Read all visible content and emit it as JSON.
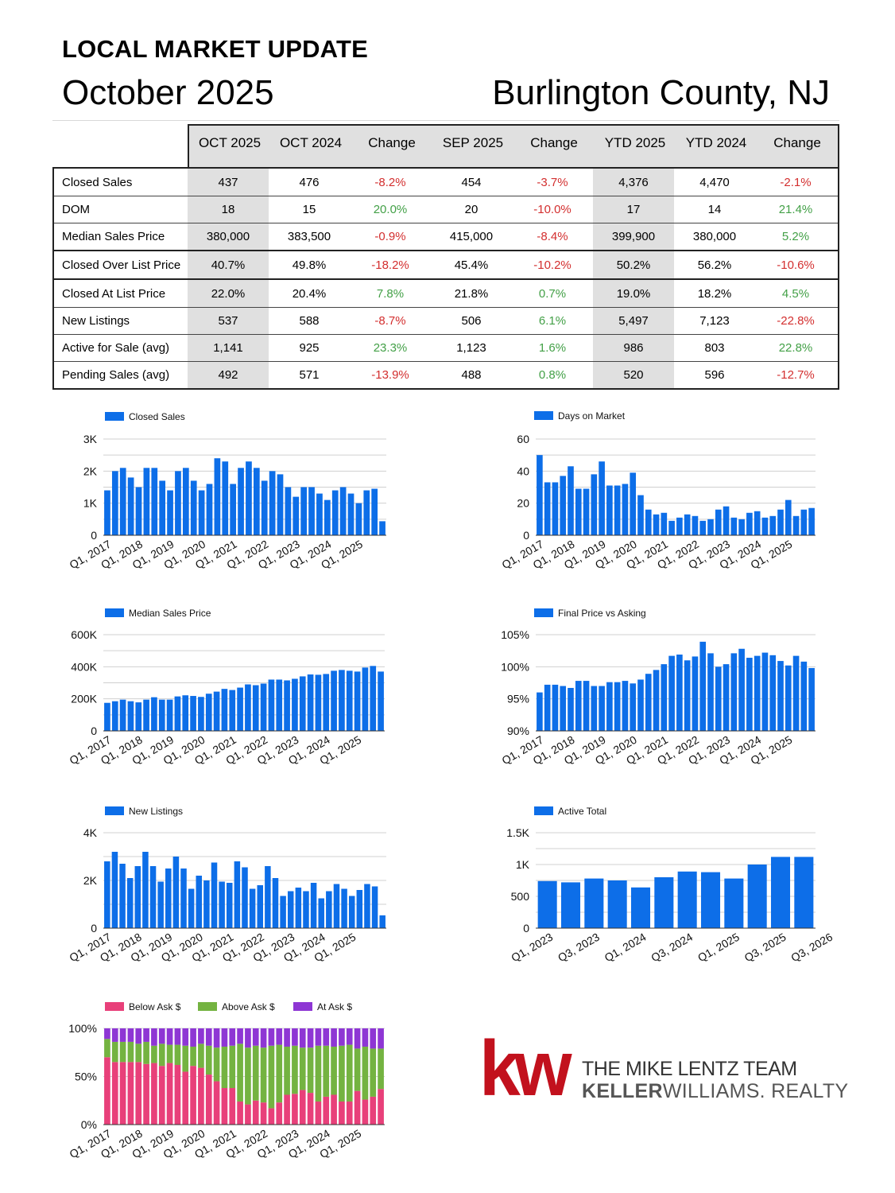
{
  "header": {
    "label": "LOCAL MARKET UPDATE",
    "date": "October 2025",
    "location": "Burlington County, NJ"
  },
  "table": {
    "columns": [
      "OCT 2025",
      "OCT 2024",
      "Change",
      "SEP 2025",
      "Change",
      "YTD 2025",
      "YTD 2024",
      "Change"
    ],
    "rows": [
      {
        "label": "Closed Sales",
        "values": [
          "437",
          "476",
          "-8.2%",
          "454",
          "-3.7%",
          "4,376",
          "4,470",
          "-2.1%"
        ]
      },
      {
        "label": "DOM",
        "values": [
          "18",
          "15",
          "20.0%",
          "20",
          "-10.0%",
          "17",
          "14",
          "21.4%"
        ]
      },
      {
        "label": "Median Sales Price",
        "values": [
          "380,000",
          "383,500",
          "-0.9%",
          "415,000",
          "-8.4%",
          "399,900",
          "380,000",
          "5.2%"
        ]
      },
      {
        "label": "Closed Over List Price",
        "values": [
          "40.7%",
          "49.8%",
          "-18.2%",
          "45.4%",
          "-10.2%",
          "50.2%",
          "56.2%",
          "-10.6%"
        ]
      },
      {
        "label": "Closed At List Price",
        "values": [
          "22.0%",
          "20.4%",
          "7.8%",
          "21.8%",
          "0.7%",
          "19.0%",
          "18.2%",
          "4.5%"
        ]
      },
      {
        "label": "New Listings",
        "values": [
          "537",
          "588",
          "-8.7%",
          "506",
          "6.1%",
          "5,497",
          "7,123",
          "-22.8%"
        ]
      },
      {
        "label": "Active for Sale (avg)",
        "values": [
          "1,141",
          "925",
          "23.3%",
          "1,123",
          "1.6%",
          "986",
          "803",
          "22.8%"
        ]
      },
      {
        "label": "Pending Sales (avg)",
        "values": [
          "492",
          "571",
          "-13.9%",
          "488",
          "0.8%",
          "520",
          "596",
          "-12.7%"
        ]
      }
    ],
    "change_colors": {
      "negative": "#d32f2f",
      "positive": "#43a047"
    }
  },
  "colors": {
    "bar": "#0d6ee8",
    "below": "#e8407a",
    "above": "#74b341",
    "at": "#8e36d4"
  },
  "chart_data": [
    {
      "type": "bar",
      "legend": "Closed Sales",
      "x_ticks": [
        "Q1, 2017",
        "Q1, 2018",
        "Q1, 2019",
        "Q1, 2020",
        "Q1, 2021",
        "Q1, 2022",
        "Q1, 2023",
        "Q1, 2024",
        "Q1, 2025"
      ],
      "y_ticks": [
        "0",
        "1K",
        "2K",
        "3K"
      ],
      "ylim": [
        0,
        3000
      ],
      "values": [
        1400,
        2000,
        2100,
        1800,
        1500,
        2100,
        2100,
        1700,
        1400,
        2000,
        2100,
        1700,
        1400,
        1600,
        2400,
        2300,
        1600,
        2100,
        2300,
        2100,
        1700,
        2000,
        1900,
        1500,
        1200,
        1500,
        1500,
        1300,
        1100,
        1400,
        1500,
        1300,
        1000,
        1400,
        1450,
        437
      ]
    },
    {
      "type": "bar",
      "legend": "Days on Market",
      "x_ticks": [
        "Q1, 2017",
        "Q1, 2018",
        "Q1, 2019",
        "Q1, 2020",
        "Q1, 2021",
        "Q1, 2022",
        "Q1, 2023",
        "Q1, 2024",
        "Q1, 2025"
      ],
      "y_ticks": [
        "0",
        "20",
        "40",
        "60"
      ],
      "ylim": [
        0,
        60
      ],
      "values": [
        50,
        33,
        33,
        37,
        43,
        29,
        29,
        38,
        46,
        31,
        31,
        32,
        39,
        25,
        16,
        13,
        14,
        9,
        11,
        13,
        12,
        9,
        10,
        16,
        18,
        11,
        10,
        14,
        15,
        11,
        12,
        16,
        22,
        12,
        16,
        17
      ]
    },
    {
      "type": "bar",
      "legend": "Median Sales Price",
      "x_ticks": [
        "Q1, 2017",
        "Q1, 2018",
        "Q1, 2019",
        "Q1, 2020",
        "Q1, 2021",
        "Q1, 2022",
        "Q1, 2023",
        "Q1, 2024",
        "Q1, 2025"
      ],
      "y_ticks": [
        "0",
        "200K",
        "400K",
        "600K"
      ],
      "ylim": [
        0,
        600000
      ],
      "values": [
        175000,
        185000,
        195000,
        185000,
        178000,
        195000,
        210000,
        195000,
        195000,
        215000,
        222000,
        218000,
        212000,
        232000,
        245000,
        262000,
        255000,
        270000,
        290000,
        285000,
        295000,
        320000,
        320000,
        315000,
        325000,
        340000,
        352000,
        350000,
        355000,
        375000,
        380000,
        375000,
        370000,
        395000,
        405000,
        370000
      ]
    },
    {
      "type": "bar",
      "legend": "Final Price vs Asking",
      "x_ticks": [
        "Q1, 2017",
        "Q1, 2018",
        "Q1, 2019",
        "Q1, 2020",
        "Q1, 2021",
        "Q1, 2022",
        "Q1, 2023",
        "Q1, 2024",
        "Q1, 2025"
      ],
      "y_ticks": [
        "90%",
        "95%",
        "100%",
        "105%"
      ],
      "ylim": [
        90,
        105
      ],
      "values": [
        96.0,
        97.2,
        97.2,
        97.0,
        96.7,
        97.8,
        97.8,
        97.0,
        97.0,
        97.6,
        97.6,
        97.8,
        97.4,
        98.0,
        98.9,
        99.5,
        100.4,
        101.7,
        101.9,
        101.0,
        101.6,
        103.9,
        102.1,
        100.0,
        100.4,
        102.1,
        102.8,
        101.4,
        101.7,
        102.2,
        101.8,
        100.9,
        100.2,
        101.7,
        100.8,
        99.8
      ]
    },
    {
      "type": "bar",
      "legend": "New Listings",
      "x_ticks": [
        "Q1, 2017",
        "Q1, 2018",
        "Q1, 2019",
        "Q1, 2020",
        "Q1, 2021",
        "Q1, 2022",
        "Q1, 2023",
        "Q1, 2024",
        "Q1, 2025"
      ],
      "y_ticks": [
        "0",
        "2K",
        "4K"
      ],
      "ylim": [
        0,
        4000
      ],
      "values": [
        2800,
        3200,
        2700,
        2100,
        2600,
        3200,
        2600,
        1950,
        2500,
        3000,
        2500,
        1650,
        2200,
        2000,
        2750,
        1950,
        1900,
        2800,
        2550,
        1650,
        1800,
        2600,
        2100,
        1350,
        1550,
        1700,
        1550,
        1900,
        1250,
        1550,
        1850,
        1650,
        1350,
        1600,
        1850,
        1750,
        537
      ]
    },
    {
      "type": "bar",
      "legend": "Active Total",
      "x_ticks": [
        "Q1, 2023",
        "Q3, 2023",
        "Q1, 2024",
        "Q3, 2024",
        "Q1, 2025",
        "Q3, 2025",
        "Q3, 2026"
      ],
      "y_ticks": [
        "0",
        "500",
        "1K",
        "1.5K"
      ],
      "ylim": [
        0,
        1500
      ],
      "values": [
        740,
        720,
        780,
        750,
        640,
        800,
        890,
        880,
        780,
        1000,
        1120,
        1120
      ]
    },
    {
      "type": "bar",
      "stacked": true,
      "x_ticks": [
        "Q1, 2017",
        "Q1, 2018",
        "Q1, 2019",
        "Q1, 2020",
        "Q1, 2021",
        "Q1, 2022",
        "Q1, 2023",
        "Q1, 2024",
        "Q1, 2025"
      ],
      "y_ticks": [
        "0%",
        "50%",
        "100%"
      ],
      "ylim": [
        0,
        100
      ],
      "series": [
        {
          "name": "Below Ask $",
          "values": [
            70,
            65,
            65,
            65,
            65,
            63,
            64,
            61,
            64,
            62,
            55,
            61,
            59,
            52,
            45,
            38,
            38,
            24,
            21,
            25,
            23,
            17,
            23,
            31,
            32,
            36,
            33,
            24,
            29,
            31,
            24,
            24,
            35,
            26,
            29,
            37
          ]
        },
        {
          "name": "Above Ask $",
          "values": [
            19,
            21,
            21,
            21,
            19,
            23,
            18,
            23,
            19,
            21,
            27,
            20,
            25,
            30,
            35,
            43,
            44,
            60,
            59,
            57,
            57,
            65,
            60,
            50,
            50,
            44,
            47,
            58,
            53,
            50,
            58,
            59,
            44,
            55,
            50,
            42
          ]
        },
        {
          "name": "At Ask $",
          "values": [
            11,
            14,
            14,
            14,
            16,
            14,
            18,
            16,
            17,
            17,
            18,
            19,
            16,
            18,
            20,
            19,
            18,
            16,
            20,
            18,
            20,
            18,
            17,
            19,
            18,
            20,
            20,
            18,
            18,
            19,
            18,
            17,
            21,
            19,
            21,
            21
          ]
        }
      ]
    }
  ],
  "logo": {
    "mark": "kw",
    "team": "THE MIKE LENTZ TEAM",
    "brand_bold": "KELLER",
    "brand_rest": "WILLIAMS. REALTY"
  }
}
